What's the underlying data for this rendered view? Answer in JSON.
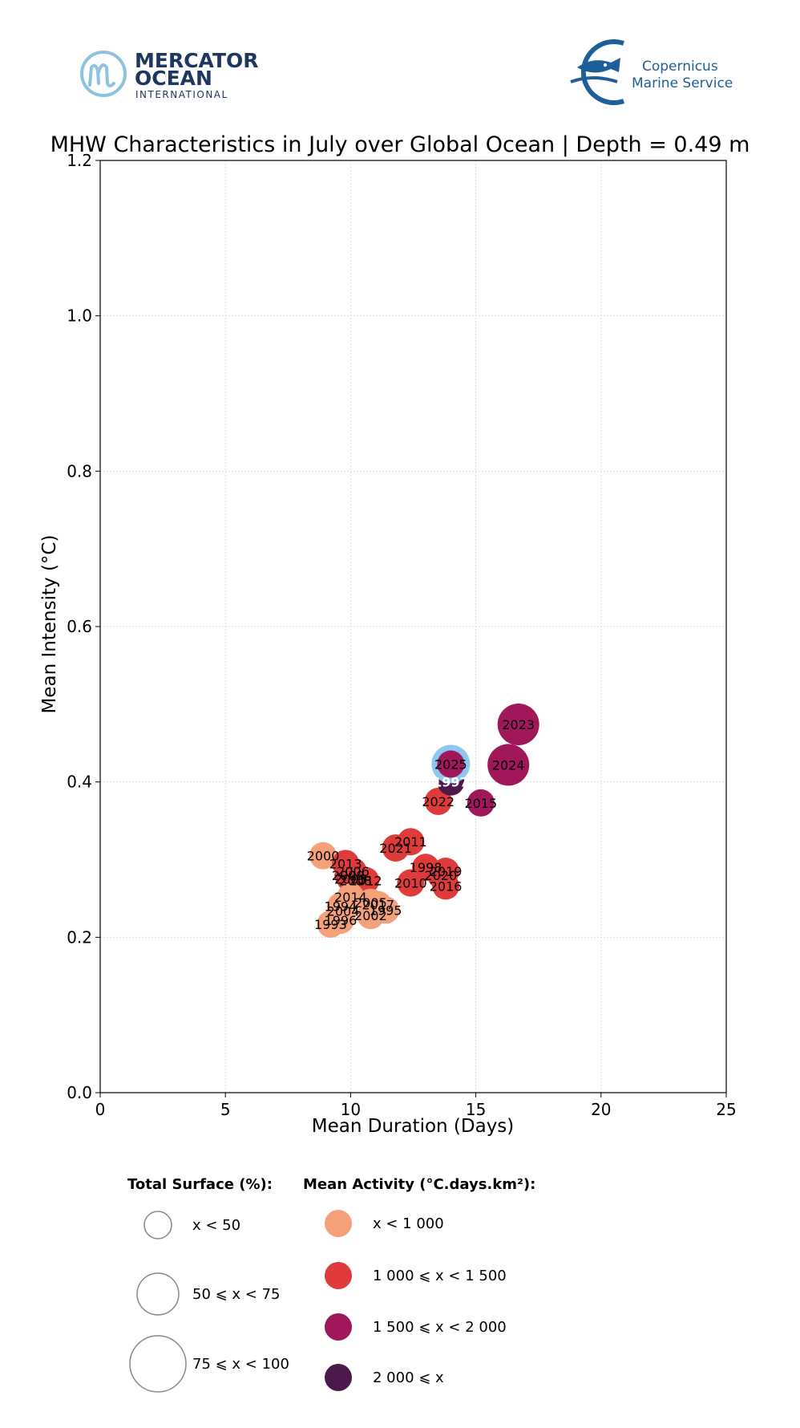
{
  "logos": {
    "left": {
      "line1": "MERCATOR",
      "line2": "OCEAN",
      "line3": "INTERNATIONAL"
    },
    "right": {
      "line1": "Copernicus",
      "line2": "Marine Service"
    }
  },
  "chart_data": {
    "type": "scatter",
    "title": "MHW Characteristics in July over Global Ocean | Depth = 0.49 m",
    "xlabel": "Mean Duration (Days)",
    "ylabel": "Mean Intensity (°C)",
    "xlim": [
      0,
      25
    ],
    "ylim": [
      0,
      1.2
    ],
    "xticks": [
      0,
      5,
      10,
      15,
      20,
      25
    ],
    "yticks": [
      0.0,
      0.2,
      0.4,
      0.6,
      0.8,
      1.0,
      1.2
    ],
    "xtick_labels": [
      "0",
      "5",
      "10",
      "15",
      "20",
      "25"
    ],
    "ytick_labels": [
      "0.0",
      "0.2",
      "0.4",
      "0.6",
      "0.8",
      "1.0",
      "1.2"
    ],
    "grid": true,
    "highlight_year": "2025",
    "colors": {
      "lt1000": "#f4a07a",
      "1000to1500": "#e03b3b",
      "1500to2000": "#a0185a",
      "ge2000": "#4b1a4a",
      "highlight_ring": "#8ec8f2"
    },
    "points": [
      {
        "year": "2000",
        "x": 8.9,
        "y": 0.305,
        "surface": "lt50",
        "activity": "lt1000"
      },
      {
        "year": "2013",
        "x": 9.8,
        "y": 0.295,
        "surface": "lt50",
        "activity": "1000to1500"
      },
      {
        "year": "2006",
        "x": 10.1,
        "y": 0.285,
        "surface": "lt50",
        "activity": "1000to1500"
      },
      {
        "year": "2009",
        "x": 9.9,
        "y": 0.28,
        "surface": "lt50",
        "activity": "1000to1500"
      },
      {
        "year": "2003",
        "x": 10.0,
        "y": 0.275,
        "surface": "lt50",
        "activity": "1000to1500"
      },
      {
        "year": "2008",
        "x": 10.2,
        "y": 0.273,
        "surface": "lt50",
        "activity": "1000to1500"
      },
      {
        "year": "2012",
        "x": 10.6,
        "y": 0.273,
        "surface": "lt50",
        "activity": "1000to1500"
      },
      {
        "year": "2011",
        "x": 12.4,
        "y": 0.323,
        "surface": "lt50",
        "activity": "1000to1500"
      },
      {
        "year": "2021",
        "x": 11.8,
        "y": 0.315,
        "surface": "lt50",
        "activity": "1000to1500"
      },
      {
        "year": "1998",
        "x": 13.0,
        "y": 0.29,
        "surface": "lt50",
        "activity": "1000to1500"
      },
      {
        "year": "2019",
        "x": 13.8,
        "y": 0.285,
        "surface": "lt50",
        "activity": "1000to1500"
      },
      {
        "year": "2020",
        "x": 13.6,
        "y": 0.28,
        "surface": "lt50",
        "activity": "1000to1500"
      },
      {
        "year": "2010",
        "x": 12.4,
        "y": 0.27,
        "surface": "lt50",
        "activity": "1000to1500"
      },
      {
        "year": "2016",
        "x": 13.8,
        "y": 0.266,
        "surface": "lt50",
        "activity": "1000to1500"
      },
      {
        "year": "2022",
        "x": 13.5,
        "y": 0.375,
        "surface": "lt50",
        "activity": "1000to1500"
      },
      {
        "year": "2014",
        "x": 10.0,
        "y": 0.252,
        "surface": "lt50",
        "activity": "lt1000"
      },
      {
        "year": "2005",
        "x": 10.8,
        "y": 0.245,
        "surface": "lt50",
        "activity": "lt1000"
      },
      {
        "year": "2017",
        "x": 11.1,
        "y": 0.242,
        "surface": "lt50",
        "activity": "lt1000"
      },
      {
        "year": "1995",
        "x": 11.4,
        "y": 0.235,
        "surface": "lt50",
        "activity": "lt1000"
      },
      {
        "year": "1994",
        "x": 9.6,
        "y": 0.24,
        "surface": "lt50",
        "activity": "lt1000"
      },
      {
        "year": "2004",
        "x": 9.7,
        "y": 0.234,
        "surface": "lt50",
        "activity": "lt1000"
      },
      {
        "year": "2002",
        "x": 10.8,
        "y": 0.228,
        "surface": "lt50",
        "activity": "lt1000"
      },
      {
        "year": "1996",
        "x": 9.6,
        "y": 0.222,
        "surface": "lt50",
        "activity": "lt1000"
      },
      {
        "year": "1993",
        "x": 9.2,
        "y": 0.217,
        "surface": "lt50",
        "activity": "lt1000"
      },
      {
        "year": "1997",
        "x": 14.0,
        "y": 0.4,
        "surface": "lt50",
        "activity": "ge2000"
      },
      {
        "year": "2015",
        "x": 15.2,
        "y": 0.373,
        "surface": "lt50",
        "activity": "1500to2000"
      },
      {
        "year": "2025",
        "x": 14.0,
        "y": 0.423,
        "surface": "lt50",
        "activity": "1500to2000"
      },
      {
        "year": "2024",
        "x": 16.3,
        "y": 0.422,
        "surface": "50to75",
        "activity": "1500to2000"
      },
      {
        "year": "2023",
        "x": 16.7,
        "y": 0.474,
        "surface": "50to75",
        "activity": "1500to2000"
      }
    ],
    "legend": {
      "surface_title": "Total Surface (%):",
      "surface_items": [
        {
          "key": "lt50",
          "label": "x < 50"
        },
        {
          "key": "50to75",
          "label": "50 ⩽ x < 75"
        },
        {
          "key": "75to100",
          "label": "75 ⩽ x < 100"
        }
      ],
      "activity_title": "Mean Activity (°C.days.km²):",
      "activity_items": [
        {
          "key": "lt1000",
          "label": "x < 1 000"
        },
        {
          "key": "1000to1500",
          "label": "1 000 ⩽ x < 1 500"
        },
        {
          "key": "1500to2000",
          "label": "1 500 ⩽ x < 2 000"
        },
        {
          "key": "ge2000",
          "label": "2 000 ⩽ x"
        }
      ]
    }
  }
}
